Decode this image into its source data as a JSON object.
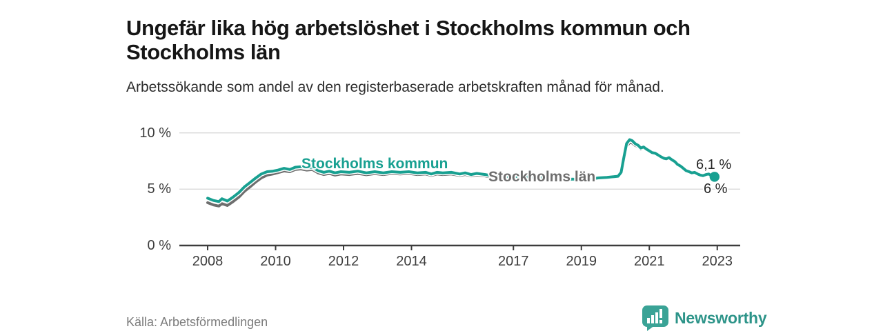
{
  "header": {
    "title": "Ungefär lika hög arbetslöshet i Stockholms kommun och Stockholms län",
    "subtitle": "Arbetssökande som andel av den registerbaserade arbetskraften månad för månad."
  },
  "chart_data": {
    "type": "line",
    "title": "Ungefär lika hög arbetslöshet i Stockholms kommun och Stockholms län",
    "subtitle": "Arbetssökande som andel av den registerbaserade arbetskraften månad för månad.",
    "unit": "%",
    "grid": "horizontal",
    "xlim": [
      2007.9,
      2023.7
    ],
    "ylim": [
      0,
      11.3
    ],
    "x_ticks": [
      2008,
      2010,
      2012,
      2014,
      2017,
      2019,
      2021,
      2023
    ],
    "y_ticks": [
      {
        "value": 0,
        "label": "0 %"
      },
      {
        "value": 5,
        "label": "5 %"
      },
      {
        "value": 10,
        "label": "10 %"
      }
    ],
    "end_labels": {
      "kommun": "6,1 %",
      "lan": "6 %"
    },
    "series": [
      {
        "id": "lan",
        "name": "Stockholms län",
        "color": "#6e6e6e",
        "end_value_pct": 6.0,
        "points": [
          [
            2008.0,
            3.8
          ],
          [
            2008.17,
            3.6
          ],
          [
            2008.33,
            3.5
          ],
          [
            2008.42,
            3.72
          ],
          [
            2008.58,
            3.55
          ],
          [
            2008.75,
            3.9
          ],
          [
            2008.92,
            4.3
          ],
          [
            2009.08,
            4.8
          ],
          [
            2009.25,
            5.22
          ],
          [
            2009.42,
            5.65
          ],
          [
            2009.58,
            6.0
          ],
          [
            2009.75,
            6.25
          ],
          [
            2009.92,
            6.35
          ],
          [
            2010.08,
            6.48
          ],
          [
            2010.25,
            6.62
          ],
          [
            2010.42,
            6.55
          ],
          [
            2010.58,
            6.75
          ],
          [
            2010.75,
            6.8
          ],
          [
            2010.92,
            6.7
          ],
          [
            2011.08,
            6.75
          ],
          [
            2011.25,
            6.45
          ],
          [
            2011.42,
            6.3
          ],
          [
            2011.58,
            6.4
          ],
          [
            2011.75,
            6.25
          ],
          [
            2011.92,
            6.35
          ],
          [
            2012.17,
            6.3
          ],
          [
            2012.42,
            6.4
          ],
          [
            2012.67,
            6.28
          ],
          [
            2012.92,
            6.38
          ],
          [
            2013.17,
            6.3
          ],
          [
            2013.42,
            6.4
          ],
          [
            2013.67,
            6.35
          ],
          [
            2013.92,
            6.4
          ],
          [
            2014.17,
            6.3
          ],
          [
            2014.42,
            6.35
          ],
          [
            2014.58,
            6.22
          ],
          [
            2014.75,
            6.35
          ],
          [
            2014.92,
            6.3
          ],
          [
            2015.17,
            6.35
          ],
          [
            2015.42,
            6.22
          ],
          [
            2015.58,
            6.3
          ],
          [
            2015.75,
            6.18
          ],
          [
            2015.92,
            6.25
          ],
          [
            2016.17,
            6.18
          ],
          [
            2016.42,
            6.03
          ],
          [
            2016.58,
            5.95
          ],
          [
            2016.75,
            6.03
          ],
          [
            2016.92,
            6.0
          ],
          [
            2017.25,
            6.05
          ],
          [
            2017.5,
            5.95
          ],
          [
            2017.75,
            6.0
          ],
          [
            2018.0,
            5.92
          ],
          [
            2018.25,
            5.88
          ],
          [
            2018.5,
            5.78
          ],
          [
            2018.75,
            5.83
          ],
          [
            2019.0,
            5.75
          ],
          [
            2019.25,
            5.85
          ],
          [
            2019.5,
            5.95
          ],
          [
            2019.75,
            6.0
          ],
          [
            2019.92,
            6.05
          ],
          [
            2020.08,
            6.1
          ],
          [
            2020.17,
            6.4
          ],
          [
            2020.25,
            7.55
          ],
          [
            2020.33,
            8.8
          ],
          [
            2020.42,
            9.15
          ],
          [
            2020.5,
            9.1
          ],
          [
            2020.58,
            8.9
          ],
          [
            2020.67,
            8.78
          ],
          [
            2020.75,
            8.55
          ],
          [
            2020.83,
            8.65
          ],
          [
            2020.92,
            8.5
          ],
          [
            2021.0,
            8.45
          ],
          [
            2021.08,
            8.32
          ],
          [
            2021.17,
            8.28
          ],
          [
            2021.25,
            8.12
          ],
          [
            2021.33,
            7.98
          ],
          [
            2021.42,
            7.83
          ],
          [
            2021.5,
            7.78
          ],
          [
            2021.58,
            7.88
          ],
          [
            2021.67,
            7.68
          ],
          [
            2021.75,
            7.52
          ],
          [
            2021.83,
            7.28
          ],
          [
            2021.92,
            7.12
          ],
          [
            2022.0,
            6.92
          ],
          [
            2022.08,
            6.72
          ],
          [
            2022.17,
            6.6
          ],
          [
            2022.25,
            6.5
          ],
          [
            2022.33,
            6.55
          ],
          [
            2022.42,
            6.4
          ],
          [
            2022.5,
            6.3
          ],
          [
            2022.58,
            6.25
          ],
          [
            2022.67,
            6.33
          ],
          [
            2022.75,
            6.3
          ],
          [
            2022.83,
            6.15
          ],
          [
            2022.92,
            6.0
          ]
        ]
      },
      {
        "id": "kommun",
        "name": "Stockholms kommun",
        "color": "#18a091",
        "end_value_pct": 6.1,
        "points": [
          [
            2008.0,
            4.2
          ],
          [
            2008.17,
            4.0
          ],
          [
            2008.33,
            3.9
          ],
          [
            2008.42,
            4.15
          ],
          [
            2008.58,
            3.95
          ],
          [
            2008.75,
            4.3
          ],
          [
            2008.92,
            4.7
          ],
          [
            2009.08,
            5.2
          ],
          [
            2009.25,
            5.6
          ],
          [
            2009.42,
            6.0
          ],
          [
            2009.58,
            6.35
          ],
          [
            2009.75,
            6.55
          ],
          [
            2009.92,
            6.6
          ],
          [
            2010.08,
            6.7
          ],
          [
            2010.25,
            6.85
          ],
          [
            2010.42,
            6.75
          ],
          [
            2010.58,
            6.95
          ],
          [
            2010.75,
            7.0
          ],
          [
            2010.92,
            6.9
          ],
          [
            2011.08,
            6.95
          ],
          [
            2011.25,
            6.65
          ],
          [
            2011.42,
            6.5
          ],
          [
            2011.58,
            6.6
          ],
          [
            2011.75,
            6.45
          ],
          [
            2011.92,
            6.55
          ],
          [
            2012.17,
            6.5
          ],
          [
            2012.42,
            6.6
          ],
          [
            2012.67,
            6.45
          ],
          [
            2012.92,
            6.55
          ],
          [
            2013.17,
            6.45
          ],
          [
            2013.42,
            6.55
          ],
          [
            2013.67,
            6.5
          ],
          [
            2013.92,
            6.55
          ],
          [
            2014.17,
            6.45
          ],
          [
            2014.42,
            6.5
          ],
          [
            2014.58,
            6.35
          ],
          [
            2014.75,
            6.5
          ],
          [
            2014.92,
            6.45
          ],
          [
            2015.17,
            6.5
          ],
          [
            2015.42,
            6.35
          ],
          [
            2015.58,
            6.45
          ],
          [
            2015.75,
            6.3
          ],
          [
            2015.92,
            6.4
          ],
          [
            2016.17,
            6.3
          ],
          [
            2016.42,
            6.15
          ],
          [
            2016.58,
            6.05
          ],
          [
            2016.75,
            6.15
          ],
          [
            2016.92,
            6.1
          ],
          [
            2017.25,
            6.15
          ],
          [
            2017.5,
            6.05
          ],
          [
            2017.75,
            6.1
          ],
          [
            2018.0,
            6.0
          ],
          [
            2018.25,
            5.95
          ],
          [
            2018.5,
            5.85
          ],
          [
            2018.75,
            5.9
          ],
          [
            2019.0,
            5.8
          ],
          [
            2019.25,
            5.9
          ],
          [
            2019.5,
            6.0
          ],
          [
            2019.75,
            6.05
          ],
          [
            2019.92,
            6.1
          ],
          [
            2020.08,
            6.15
          ],
          [
            2020.17,
            6.5
          ],
          [
            2020.25,
            7.8
          ],
          [
            2020.33,
            9.05
          ],
          [
            2020.42,
            9.4
          ],
          [
            2020.5,
            9.3
          ],
          [
            2020.58,
            9.05
          ],
          [
            2020.67,
            8.9
          ],
          [
            2020.75,
            8.65
          ],
          [
            2020.83,
            8.75
          ],
          [
            2020.92,
            8.55
          ],
          [
            2021.0,
            8.4
          ],
          [
            2021.08,
            8.25
          ],
          [
            2021.17,
            8.2
          ],
          [
            2021.25,
            8.05
          ],
          [
            2021.33,
            7.9
          ],
          [
            2021.42,
            7.75
          ],
          [
            2021.5,
            7.7
          ],
          [
            2021.58,
            7.8
          ],
          [
            2021.67,
            7.6
          ],
          [
            2021.75,
            7.45
          ],
          [
            2021.83,
            7.2
          ],
          [
            2021.92,
            7.05
          ],
          [
            2022.0,
            6.85
          ],
          [
            2022.08,
            6.65
          ],
          [
            2022.17,
            6.55
          ],
          [
            2022.25,
            6.45
          ],
          [
            2022.33,
            6.5
          ],
          [
            2022.42,
            6.35
          ],
          [
            2022.5,
            6.25
          ],
          [
            2022.58,
            6.2
          ],
          [
            2022.67,
            6.3
          ],
          [
            2022.75,
            6.35
          ],
          [
            2022.83,
            6.2
          ],
          [
            2022.92,
            6.1
          ]
        ]
      }
    ]
  },
  "footer": {
    "source": "Källa: Arbetsförmedlingen",
    "brand": "Newsworthy"
  },
  "colors": {
    "kommun_line": "#18a091",
    "lan_line": "#6e6e6e",
    "gridline": "#d9d9d9",
    "axis": "#3c3c3c",
    "logo_icon": "#3aa396",
    "logo_text": "#2d9489"
  }
}
